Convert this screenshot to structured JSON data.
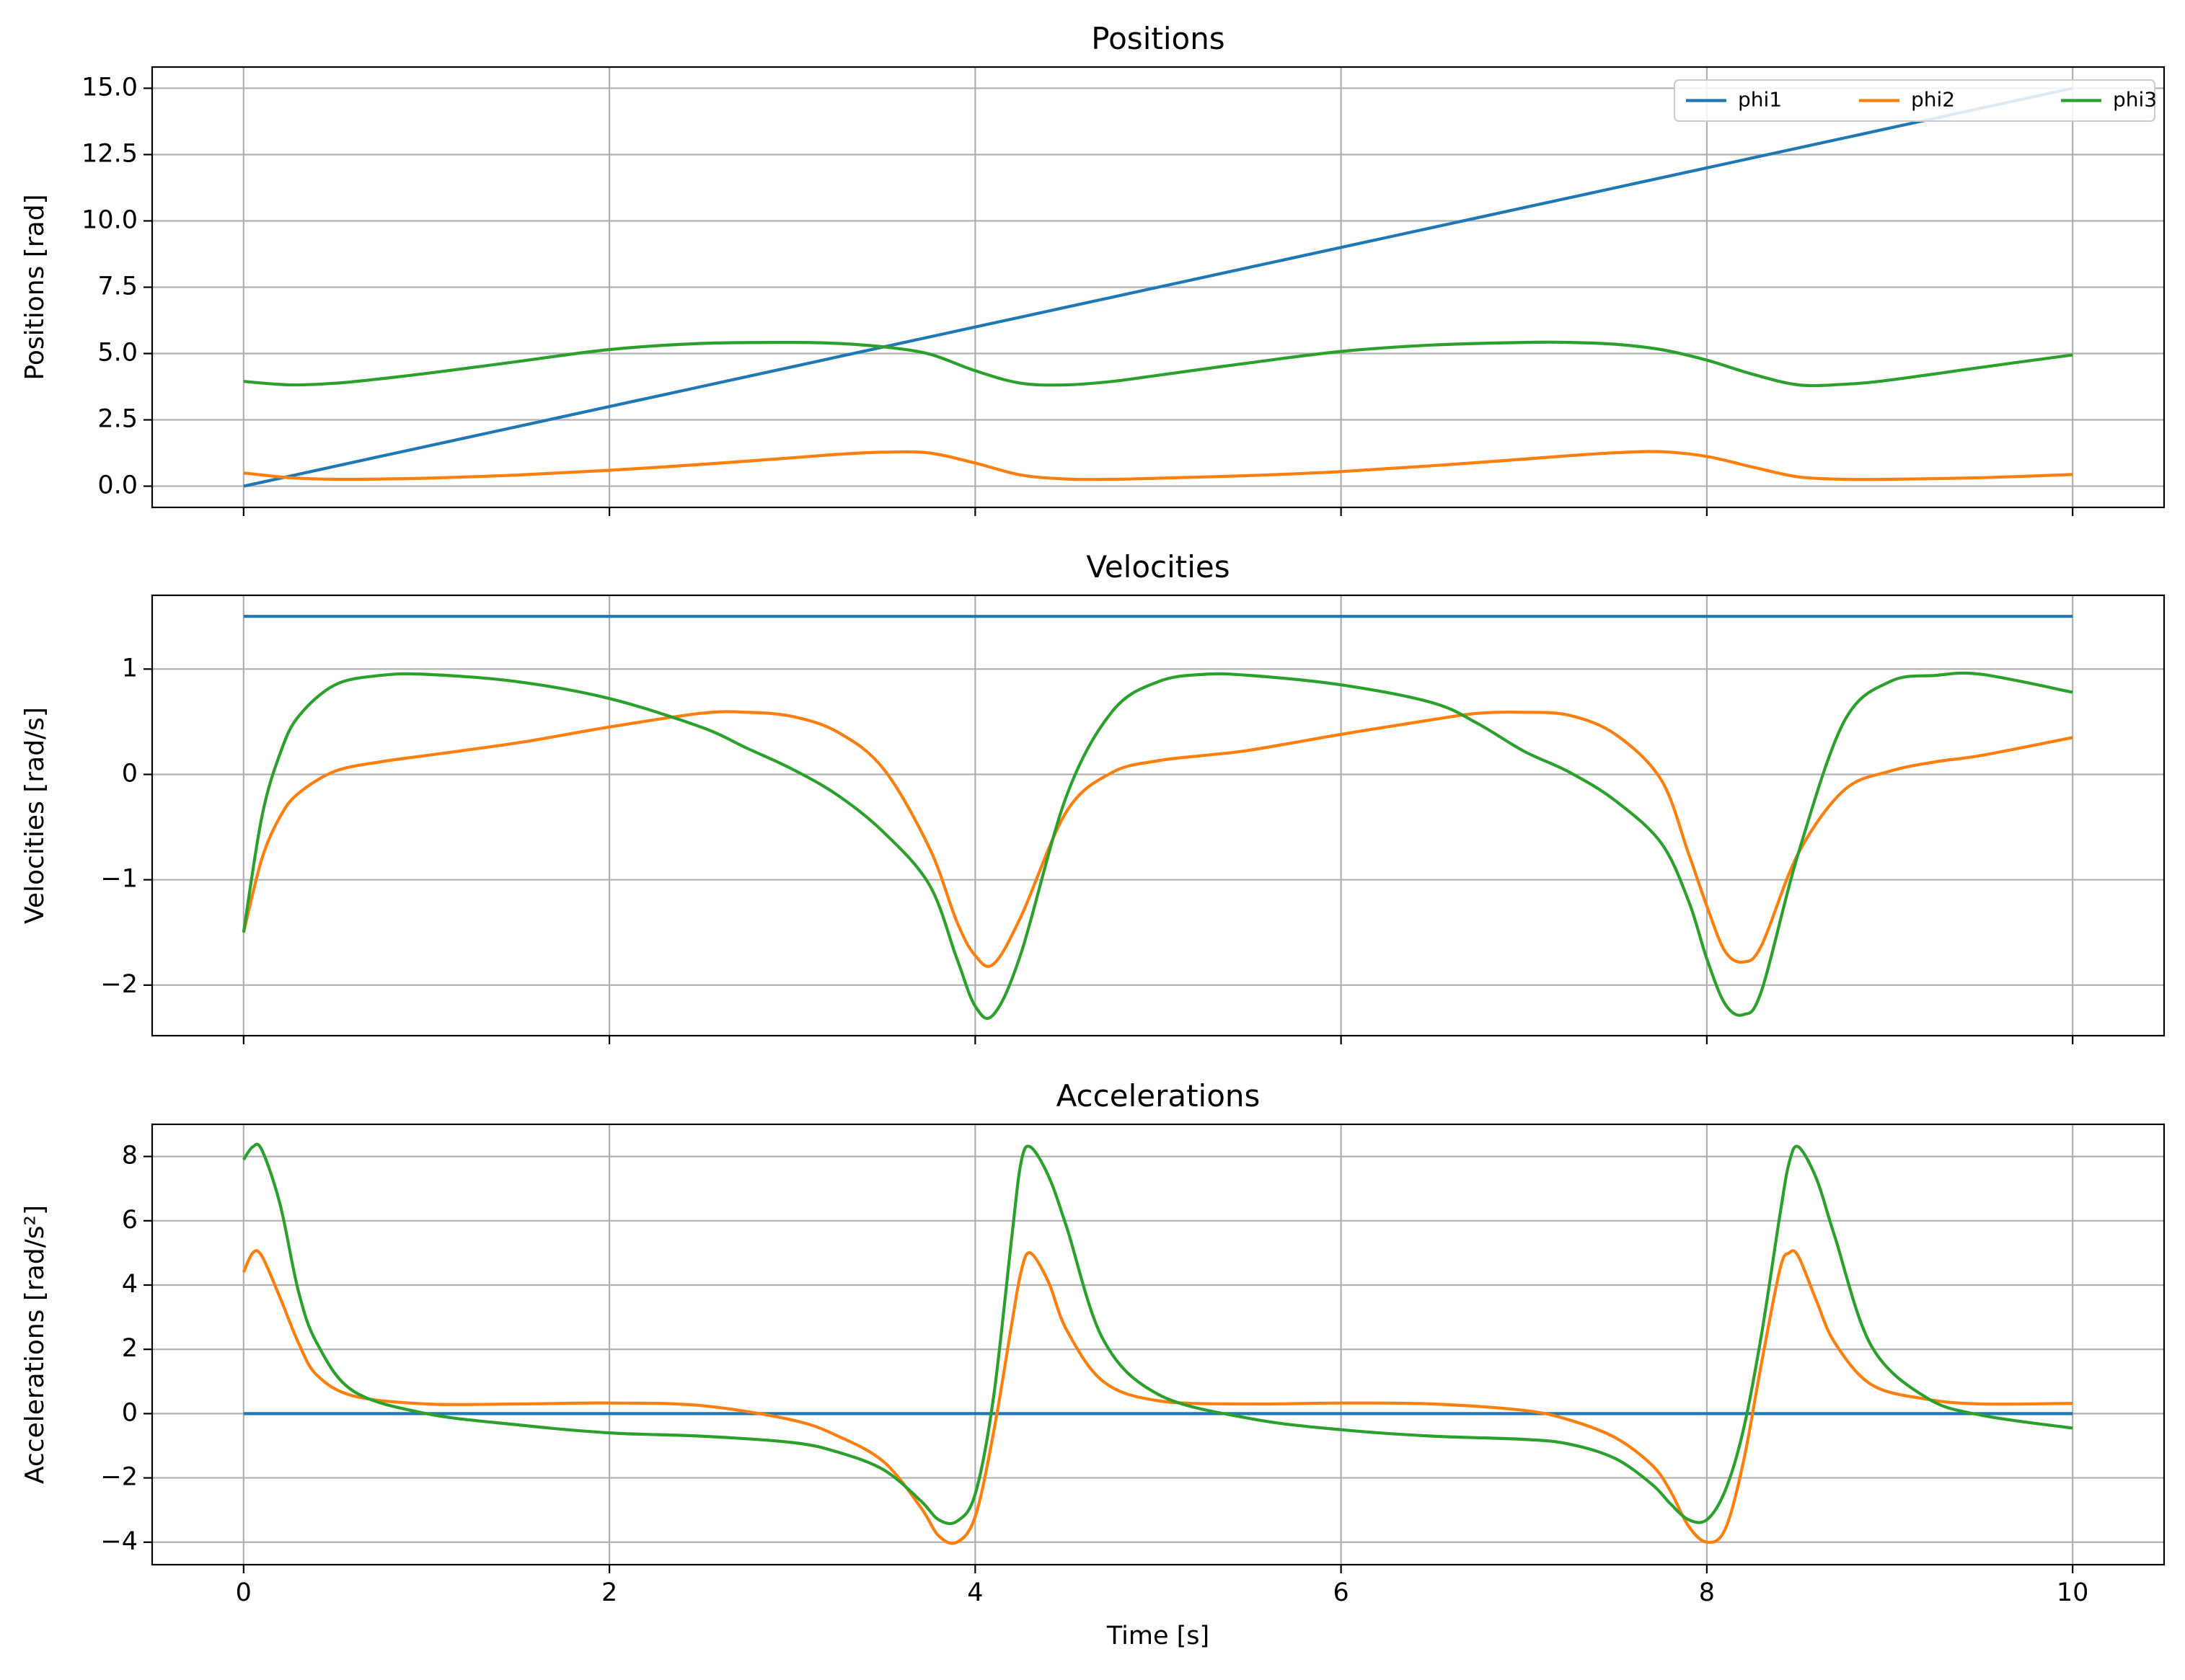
{
  "chart_data": [
    {
      "type": "line",
      "title": "Positions",
      "xlabel": "",
      "ylabel": "Positions [rad]",
      "xlim": [
        -0.5,
        10.5
      ],
      "ylim": [
        -0.8,
        15.8
      ],
      "xticks": [
        0,
        2,
        4,
        6,
        8,
        10
      ],
      "xtick_labels_shown": false,
      "yticks": [
        0.0,
        2.5,
        5.0,
        7.5,
        10.0,
        12.5,
        15.0
      ],
      "ytick_labels": [
        "0.0",
        "2.5",
        "5.0",
        "7.5",
        "10.0",
        "12.5",
        "15.0"
      ],
      "grid": true,
      "legend": {
        "placement": "top-right",
        "columns": 3
      },
      "x": [
        0,
        0.25,
        0.5,
        0.75,
        1,
        1.5,
        2,
        2.5,
        3,
        3.25,
        3.5,
        3.75,
        4,
        4.25,
        4.5,
        4.75,
        5,
        5.5,
        6,
        6.5,
        7,
        7.25,
        7.5,
        7.75,
        8,
        8.25,
        8.5,
        8.75,
        9,
        9.5,
        10
      ],
      "series": [
        {
          "name": "phi1",
          "color": "#1f77b4",
          "values": [
            0,
            0.375,
            0.75,
            1.125,
            1.5,
            2.25,
            3,
            3.75,
            4.5,
            4.875,
            5.25,
            5.625,
            6,
            6.375,
            6.75,
            7.125,
            7.5,
            8.25,
            9,
            9.75,
            10.5,
            10.875,
            11.25,
            11.625,
            12,
            12.375,
            12.75,
            13.125,
            13.5,
            14.25,
            15
          ]
        },
        {
          "name": "phi2",
          "color": "#ff7f0e",
          "values": [
            0.5,
            0.32,
            0.26,
            0.27,
            0.3,
            0.42,
            0.6,
            0.82,
            1.07,
            1.2,
            1.28,
            1.25,
            0.87,
            0.42,
            0.27,
            0.26,
            0.3,
            0.4,
            0.55,
            0.77,
            1.02,
            1.15,
            1.26,
            1.3,
            1.12,
            0.72,
            0.35,
            0.26,
            0.26,
            0.32,
            0.44
          ]
        },
        {
          "name": "phi3",
          "color": "#2ca02c",
          "values": [
            3.95,
            3.82,
            3.88,
            4.05,
            4.25,
            4.7,
            5.15,
            5.38,
            5.42,
            5.38,
            5.25,
            4.98,
            4.35,
            3.88,
            3.82,
            3.95,
            4.18,
            4.65,
            5.08,
            5.32,
            5.42,
            5.42,
            5.35,
            5.15,
            4.75,
            4.22,
            3.82,
            3.84,
            4.0,
            4.48,
            4.95
          ]
        }
      ]
    },
    {
      "type": "line",
      "title": "Velocities",
      "xlabel": "",
      "ylabel": "Velocities [rad/s]",
      "xlim": [
        -0.5,
        10.5
      ],
      "ylim": [
        -2.48,
        1.7
      ],
      "xticks": [
        0,
        2,
        4,
        6,
        8,
        10
      ],
      "xtick_labels_shown": false,
      "yticks": [
        -2,
        -1,
        0,
        1
      ],
      "ytick_labels": [
        "−2",
        "−1",
        "0",
        "1"
      ],
      "grid": true,
      "x": [
        0,
        0.1,
        0.2,
        0.3,
        0.5,
        0.75,
        1,
        1.5,
        2,
        2.5,
        2.75,
        3,
        3.25,
        3.5,
        3.75,
        3.9,
        4,
        4.1,
        4.25,
        4.5,
        4.75,
        5,
        5.25,
        5.5,
        6,
        6.5,
        6.75,
        7,
        7.25,
        7.5,
        7.75,
        7.9,
        8,
        8.1,
        8.2,
        8.3,
        8.5,
        8.75,
        9,
        9.25,
        9.5,
        10
      ],
      "series": [
        {
          "name": "phi1",
          "color": "#1f77b4",
          "values": [
            1.5,
            1.5,
            1.5,
            1.5,
            1.5,
            1.5,
            1.5,
            1.5,
            1.5,
            1.5,
            1.5,
            1.5,
            1.5,
            1.5,
            1.5,
            1.5,
            1.5,
            1.5,
            1.5,
            1.5,
            1.5,
            1.5,
            1.5,
            1.5,
            1.5,
            1.5,
            1.5,
            1.5,
            1.5,
            1.5,
            1.5,
            1.5,
            1.5,
            1.5,
            1.5,
            1.5,
            1.5,
            1.5,
            1.5,
            1.5,
            1.5,
            1.5
          ]
        },
        {
          "name": "phi2",
          "color": "#ff7f0e",
          "values": [
            -1.5,
            -0.8,
            -0.4,
            -0.18,
            0.03,
            0.12,
            0.18,
            0.3,
            0.45,
            0.58,
            0.59,
            0.55,
            0.4,
            0.05,
            -0.7,
            -1.4,
            -1.72,
            -1.8,
            -1.35,
            -0.35,
            0.02,
            0.13,
            0.18,
            0.23,
            0.38,
            0.52,
            0.58,
            0.59,
            0.56,
            0.38,
            -0.05,
            -0.75,
            -1.25,
            -1.68,
            -1.78,
            -1.62,
            -0.75,
            -0.15,
            0.03,
            0.12,
            0.18,
            0.35
          ]
        },
        {
          "name": "phi3",
          "color": "#2ca02c",
          "values": [
            -1.5,
            -0.4,
            0.2,
            0.55,
            0.85,
            0.94,
            0.95,
            0.88,
            0.72,
            0.45,
            0.25,
            0.05,
            -0.2,
            -0.55,
            -1.05,
            -1.75,
            -2.2,
            -2.28,
            -1.7,
            -0.2,
            0.6,
            0.88,
            0.95,
            0.94,
            0.85,
            0.68,
            0.48,
            0.22,
            0.02,
            -0.25,
            -0.65,
            -1.2,
            -1.75,
            -2.18,
            -2.28,
            -2.05,
            -0.75,
            0.5,
            0.88,
            0.94,
            0.95,
            0.78
          ]
        }
      ]
    },
    {
      "type": "line",
      "title": "Accelerations",
      "xlabel": "Time [s]",
      "ylabel": "Accelerations [rad/s²]",
      "xlim": [
        -0.5,
        10.5
      ],
      "ylim": [
        -4.7,
        9.0
      ],
      "xticks": [
        0,
        2,
        4,
        6,
        8,
        10
      ],
      "xtick_labels": [
        "0",
        "2",
        "4",
        "6",
        "8",
        "10"
      ],
      "yticks": [
        -4,
        -2,
        0,
        2,
        4,
        6,
        8
      ],
      "ytick_labels": [
        "−4",
        "−2",
        "0",
        "2",
        "4",
        "6",
        "8"
      ],
      "grid": true,
      "x": [
        0,
        0.05,
        0.1,
        0.2,
        0.3,
        0.4,
        0.6,
        1,
        1.5,
        2,
        2.5,
        3,
        3.25,
        3.5,
        3.7,
        3.8,
        3.9,
        4,
        4.1,
        4.2,
        4.25,
        4.3,
        4.4,
        4.5,
        4.7,
        5,
        5.5,
        6,
        6.5,
        7,
        7.25,
        7.5,
        7.7,
        7.8,
        7.9,
        8,
        8.1,
        8.2,
        8.3,
        8.4,
        8.45,
        8.5,
        8.6,
        8.7,
        8.9,
        9.2,
        9.5,
        10
      ],
      "series": [
        {
          "name": "phi1",
          "color": "#1f77b4",
          "values": [
            0,
            0,
            0,
            0,
            0,
            0,
            0,
            0,
            0,
            0,
            0,
            0,
            0,
            0,
            0,
            0,
            0,
            0,
            0,
            0,
            0,
            0,
            0,
            0,
            0,
            0,
            0,
            0,
            0,
            0,
            0,
            0,
            0,
            0,
            0,
            0,
            0,
            0,
            0,
            0,
            0,
            0,
            0,
            0,
            0,
            0,
            0,
            0
          ]
        },
        {
          "name": "phi2",
          "color": "#ff7f0e",
          "values": [
            4.4,
            5.0,
            4.9,
            3.6,
            2.2,
            1.2,
            0.55,
            0.3,
            0.3,
            0.33,
            0.25,
            -0.2,
            -0.7,
            -1.5,
            -2.9,
            -3.8,
            -4.0,
            -3.2,
            -0.6,
            2.8,
            4.4,
            5.0,
            4.1,
            2.6,
            1.0,
            0.4,
            0.3,
            0.33,
            0.3,
            0.1,
            -0.2,
            -0.75,
            -1.6,
            -2.4,
            -3.5,
            -4.0,
            -3.6,
            -1.5,
            1.6,
            4.5,
            5.0,
            4.9,
            3.5,
            2.2,
            0.9,
            0.45,
            0.3,
            0.32
          ]
        },
        {
          "name": "phi3",
          "color": "#2ca02c",
          "values": [
            7.9,
            8.3,
            8.2,
            6.5,
            3.8,
            2.2,
            0.7,
            0.0,
            -0.35,
            -0.6,
            -0.7,
            -0.9,
            -1.2,
            -1.75,
            -2.7,
            -3.3,
            -3.35,
            -2.5,
            0.5,
            5.5,
            7.8,
            8.3,
            7.4,
            5.8,
            2.3,
            0.6,
            -0.15,
            -0.5,
            -0.7,
            -0.8,
            -0.95,
            -1.4,
            -2.2,
            -2.8,
            -3.3,
            -3.3,
            -2.4,
            -0.5,
            2.5,
            6.2,
            7.8,
            8.3,
            7.3,
            5.5,
            2.1,
            0.5,
            -0.05,
            -0.45
          ]
        }
      ]
    }
  ]
}
